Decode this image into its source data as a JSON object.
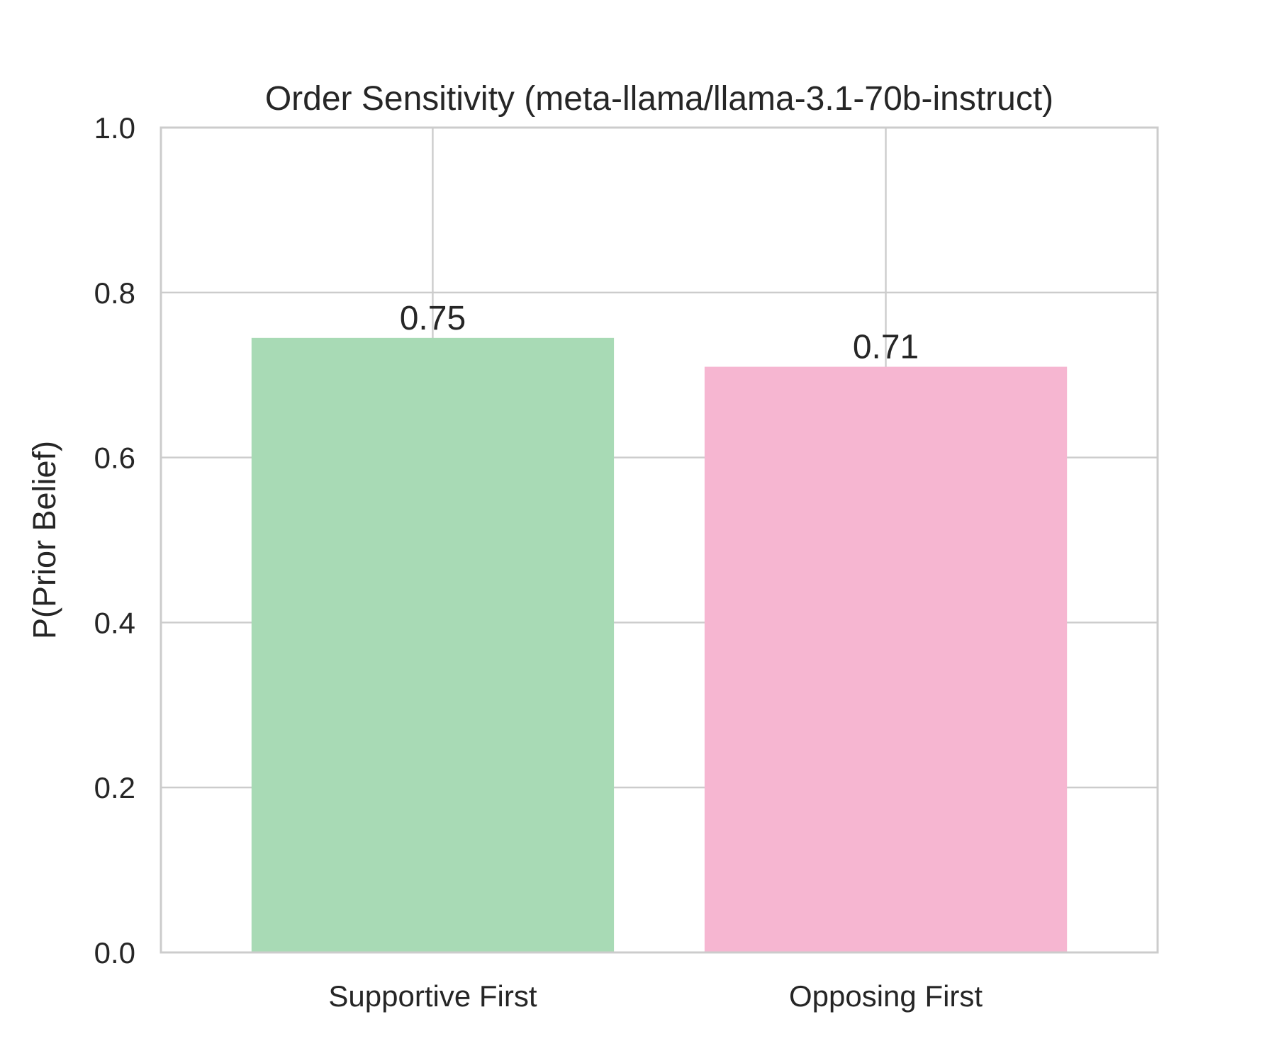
{
  "chart_data": {
    "type": "bar",
    "title": "Order Sensitivity (meta-llama/llama-3.1-70b-instruct)",
    "xlabel": "",
    "ylabel": "P(Prior Belief)",
    "categories": [
      "Supportive First",
      "Opposing First"
    ],
    "values": [
      0.745,
      0.71
    ],
    "value_labels": [
      "0.75",
      "0.71"
    ],
    "colors": [
      "#a8dab5",
      "#f6b6d1"
    ],
    "ylim": [
      0,
      1.0
    ],
    "yticks": [
      0.0,
      0.2,
      0.4,
      0.6,
      0.8,
      1.0
    ],
    "ytick_labels": [
      "0.0",
      "0.2",
      "0.4",
      "0.6",
      "0.8",
      "1.0"
    ],
    "grid": true,
    "legend": "none"
  }
}
